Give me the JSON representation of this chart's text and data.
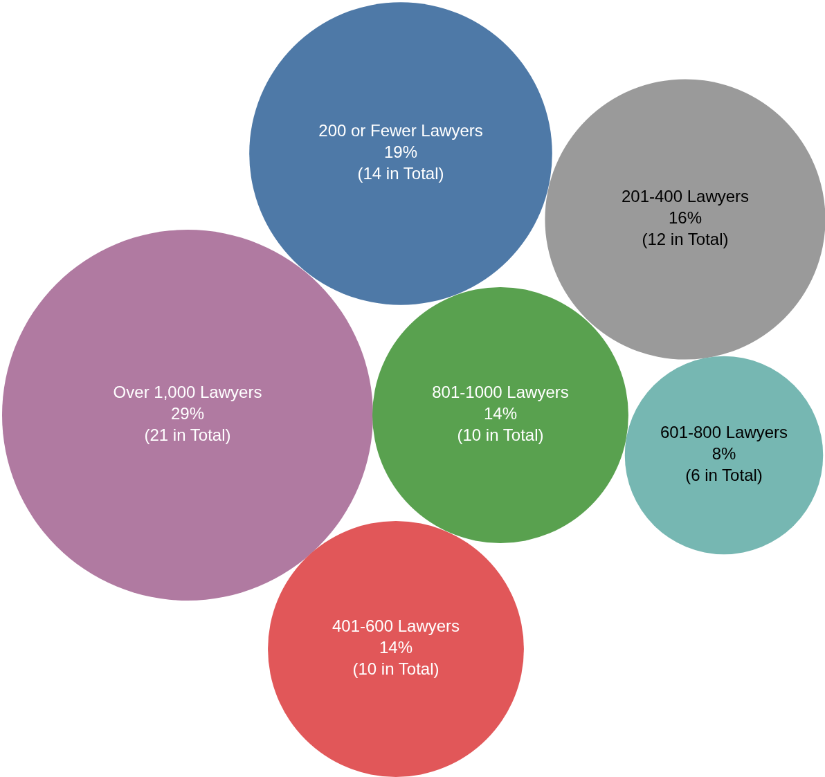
{
  "chart_data": {
    "type": "other",
    "categories": [
      "Over 1,000 Lawyers",
      "200 or Fewer Lawyers",
      "201-400 Lawyers",
      "801-1000 Lawyers",
      "601-800 Lawyers",
      "401-600 Lawyers"
    ],
    "values": [
      21,
      14,
      12,
      10,
      6,
      10
    ],
    "value_labels": [
      "29%\n(21 in Total)",
      "19%\n(14 in Total)",
      "16%\n(12 in Total)",
      "14%\n(10 in Total)",
      "8%\n(6 in Total)",
      "14%\n(10 in Total)"
    ],
    "colors": [
      "#b07aa1",
      "#4e79a7",
      "#9a9a9a",
      "#59a14f",
      "#76b7b2",
      "#e15759"
    ]
  }
}
